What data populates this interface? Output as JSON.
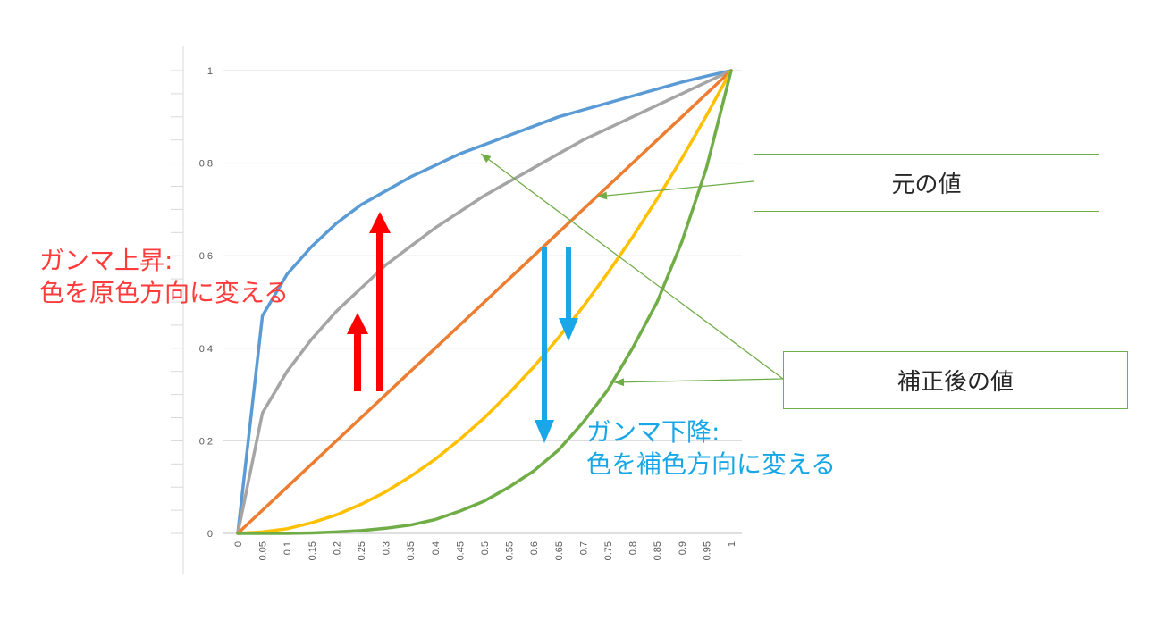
{
  "chart_data": {
    "type": "line",
    "x": [
      0,
      0.05,
      0.1,
      0.15,
      0.2,
      0.25,
      0.3,
      0.35,
      0.4,
      0.45,
      0.5,
      0.55,
      0.6,
      0.65,
      0.7,
      0.75,
      0.8,
      0.85,
      0.9,
      0.95,
      1
    ],
    "x_tick_labels": [
      "0",
      "0.05",
      "0.1",
      "0.15",
      "0.2",
      "0.25",
      "0.3",
      "0.35",
      "0.4",
      "0.45",
      "0.5",
      "0.55",
      "0.6",
      "0.65",
      "0.7",
      "0.75",
      "0.8",
      "0.85",
      "0.9",
      "0.95",
      "1"
    ],
    "y_tick_labels": [
      "0",
      "0.2",
      "0.4",
      "0.6",
      "0.8",
      "1"
    ],
    "ylim": [
      0,
      1
    ],
    "grid": true,
    "legend": "none",
    "series": [
      {
        "color": "#5b9bd5",
        "values": [
          0,
          0.47,
          0.56,
          0.62,
          0.67,
          0.71,
          0.74,
          0.77,
          0.795,
          0.82,
          0.84,
          0.86,
          0.88,
          0.9,
          0.915,
          0.93,
          0.945,
          0.96,
          0.975,
          0.988,
          1
        ]
      },
      {
        "color": "#a5a5a5",
        "values": [
          0,
          0.26,
          0.35,
          0.42,
          0.48,
          0.53,
          0.58,
          0.62,
          0.66,
          0.695,
          0.73,
          0.76,
          0.79,
          0.82,
          0.85,
          0.875,
          0.9,
          0.925,
          0.95,
          0.975,
          1
        ]
      },
      {
        "color": "#ed7d31",
        "values": [
          0,
          0.05,
          0.1,
          0.15,
          0.2,
          0.25,
          0.3,
          0.35,
          0.4,
          0.45,
          0.5,
          0.55,
          0.6,
          0.65,
          0.7,
          0.75,
          0.8,
          0.85,
          0.9,
          0.95,
          1
        ]
      },
      {
        "color": "#ffc000",
        "values": [
          0,
          0.003,
          0.01,
          0.023,
          0.04,
          0.063,
          0.09,
          0.123,
          0.16,
          0.203,
          0.25,
          0.303,
          0.36,
          0.423,
          0.49,
          0.563,
          0.64,
          0.723,
          0.81,
          0.903,
          1
        ]
      },
      {
        "color": "#70ad47",
        "values": [
          0,
          0,
          0,
          0.001,
          0.003,
          0.006,
          0.011,
          0.018,
          0.03,
          0.048,
          0.07,
          0.1,
          0.135,
          0.18,
          0.24,
          0.31,
          0.4,
          0.5,
          0.63,
          0.79,
          1
        ]
      }
    ]
  },
  "annotations": {
    "gamma_up_line1": "ガンマ上昇:",
    "gamma_up_line2": "色を原色方向に変える",
    "gamma_down_line1": "ガンマ下降:",
    "gamma_down_line2": "色を補色方向に変える",
    "original_value": "元の値",
    "corrected_value": "補正後の値"
  },
  "colors": {
    "up_arrow": "#ff0000",
    "down_arrow": "#1aa7e8",
    "callout_line": "#70ad47"
  }
}
